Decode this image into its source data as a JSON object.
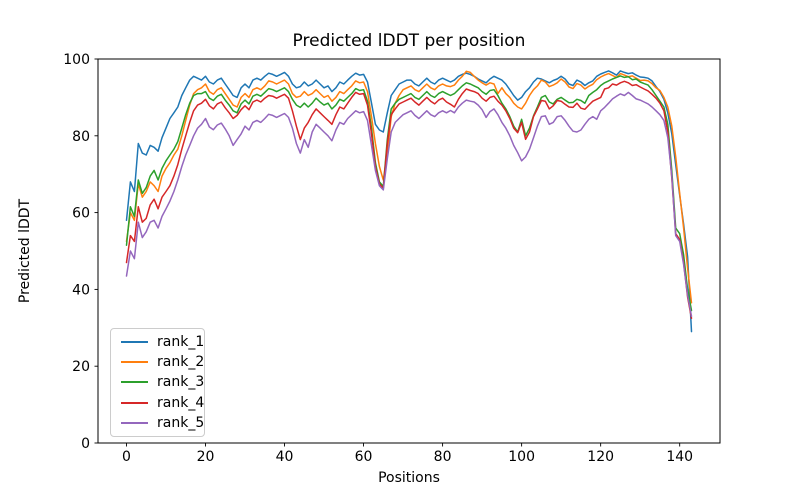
{
  "chart_data": {
    "type": "line",
    "title": "Predicted lDDT per position",
    "xlabel": "Positions",
    "ylabel": "Predicted lDDT",
    "xlim": [
      -7.2,
      150.2
    ],
    "ylim": [
      0,
      100
    ],
    "x_ticks": [
      0,
      20,
      40,
      60,
      80,
      100,
      120,
      140
    ],
    "y_ticks": [
      0,
      20,
      40,
      60,
      80,
      100
    ],
    "grid": false,
    "legend_position": "lower left",
    "x_start": 0,
    "x_step": 1,
    "series": [
      {
        "name": "rank_1",
        "color": "#1f77b4",
        "values": [
          58,
          68,
          65.5,
          78,
          75.5,
          75,
          77.5,
          77,
          76,
          79.5,
          82,
          84.5,
          86,
          87.5,
          90.5,
          92.5,
          94.5,
          95.5,
          95,
          94.5,
          95.5,
          94,
          93.5,
          94.5,
          95,
          93.5,
          92,
          90.5,
          90,
          92.5,
          93.5,
          92.5,
          94.5,
          95,
          94.5,
          95.5,
          96.3,
          96,
          95.5,
          96,
          96.5,
          95.5,
          93.5,
          92.5,
          92.8,
          94,
          93,
          93.5,
          94.5,
          93.5,
          92.5,
          93,
          91.5,
          92.5,
          94,
          93.5,
          94.5,
          95.5,
          96.3,
          95.8,
          96,
          94,
          88.5,
          83,
          81.5,
          81,
          86,
          90.5,
          92,
          93.5,
          94,
          94.5,
          94.5,
          93.5,
          93,
          94,
          95,
          94,
          93.5,
          94.5,
          95,
          94.5,
          94,
          94.5,
          95.5,
          96,
          96.3,
          96,
          95.5,
          94.8,
          94.3,
          93.8,
          94.8,
          95.5,
          95,
          94.5,
          93.5,
          92,
          90.5,
          89.3,
          90,
          91.5,
          92.5,
          94,
          95,
          94.8,
          94.3,
          93.8,
          94.4,
          94.8,
          95.5,
          94.8,
          93.5,
          93.1,
          94.5,
          94,
          93.1,
          93.8,
          94.3,
          95.5,
          96.1,
          96.5,
          96.9,
          96.4,
          95.8,
          96.9,
          96.5,
          96.2,
          96.4,
          95.8,
          95.3,
          95.2,
          95,
          94.3,
          92.8,
          91.5,
          89.5,
          86,
          80.5,
          72.5,
          64.5,
          57,
          48.5,
          29
        ]
      },
      {
        "name": "rank_2",
        "color": "#ff7f0e",
        "values": [
          52.5,
          60,
          58,
          67.5,
          64,
          65.5,
          68,
          67,
          65.5,
          69.5,
          71.5,
          73,
          75,
          76.5,
          80,
          84,
          88,
          91,
          92,
          92.5,
          93.5,
          91.5,
          90.8,
          92,
          92.5,
          91,
          89.5,
          88,
          87.5,
          90,
          91,
          90,
          92,
          92.5,
          92,
          93,
          94.3,
          94,
          93.5,
          94,
          94.5,
          93.5,
          91,
          90,
          90.3,
          91.5,
          90.5,
          91,
          92,
          91,
          90,
          90.5,
          89,
          90,
          91.5,
          91,
          92,
          93,
          94.3,
          93.8,
          94,
          91.5,
          85,
          78,
          72,
          68.5,
          75,
          85,
          88.5,
          90.5,
          92,
          92.5,
          93,
          92,
          91.5,
          92.5,
          93.5,
          92.5,
          92,
          93,
          93.5,
          93,
          92.8,
          93.2,
          94.5,
          95.5,
          96.8,
          96.5,
          95.5,
          94.5,
          93.8,
          93.2,
          93.8,
          93.5,
          91,
          92.5,
          91,
          90,
          88.5,
          87.5,
          87,
          88.5,
          90.5,
          92,
          93,
          94.5,
          94,
          92.8,
          93.2,
          93.8,
          94.8,
          94,
          92.7,
          92.3,
          93.6,
          93.2,
          92.2,
          92.9,
          93.4,
          94.6,
          95.3,
          95.8,
          96.2,
          95.7,
          95.2,
          96.2,
          95.8,
          95.4,
          95.6,
          95,
          94.4,
          94.5,
          94.3,
          93.6,
          92.5,
          91.8,
          90,
          87.5,
          82.5,
          74.5,
          65,
          56,
          45.5,
          36.5
        ]
      },
      {
        "name": "rank_3",
        "color": "#2ca02c",
        "values": [
          51.5,
          61.5,
          59,
          68.5,
          65,
          66.5,
          69.5,
          71,
          68.5,
          71.5,
          73.5,
          75,
          76.5,
          78.5,
          82,
          85.5,
          88.5,
          90.5,
          91,
          91,
          91.5,
          89.8,
          89.2,
          90.3,
          90.8,
          89.3,
          88,
          86.5,
          86,
          88.3,
          89.3,
          88.3,
          90.3,
          90.8,
          90.3,
          91.3,
          92.3,
          92,
          91.5,
          92,
          92.5,
          91.5,
          89.5,
          88,
          87.4,
          88.5,
          87.5,
          88.5,
          89.8,
          88.8,
          88,
          88.5,
          87,
          88,
          89.5,
          89,
          90,
          91,
          92.3,
          91.8,
          92,
          89,
          82,
          73,
          68,
          66.8,
          79,
          87,
          88.5,
          89.5,
          90,
          90.5,
          91,
          90,
          89.5,
          90.5,
          91.5,
          90.5,
          90,
          91,
          91.5,
          91,
          90.5,
          91,
          92,
          93,
          93.8,
          93.5,
          93,
          92.5,
          91.5,
          90.8,
          91.8,
          92,
          90.5,
          88.5,
          87,
          85,
          82.5,
          81,
          84.3,
          80,
          82,
          85.2,
          87.5,
          90,
          90.5,
          88.8,
          88.3,
          89.5,
          90,
          89.3,
          88.6,
          88.7,
          89.5,
          89.2,
          88.5,
          90.5,
          91.3,
          92,
          93.1,
          93.8,
          94.3,
          94.8,
          95.2,
          95.6,
          95.2,
          95.4,
          94.6,
          94.8,
          94,
          93.6,
          93.2,
          92,
          90.5,
          89,
          87.5,
          83,
          71,
          56,
          54.5,
          49,
          40,
          34.5
        ]
      },
      {
        "name": "rank_4",
        "color": "#d62728",
        "values": [
          47,
          54,
          52.5,
          61.5,
          57.5,
          58.5,
          62,
          63.5,
          61,
          64,
          65.5,
          67,
          69.5,
          72.5,
          76.5,
          80,
          83.5,
          86.5,
          88,
          88.5,
          89.5,
          87.8,
          87,
          88.3,
          88.8,
          87.3,
          86,
          84.5,
          85.3,
          86.8,
          87.8,
          86.8,
          88.8,
          89.3,
          88.8,
          89.8,
          90.5,
          90.3,
          89.8,
          90.3,
          90.8,
          89.8,
          86.5,
          82.5,
          79,
          82,
          83.5,
          85.5,
          87,
          86,
          85,
          84,
          83,
          85.5,
          87.5,
          87,
          88.5,
          90,
          91.3,
          90.8,
          91,
          88,
          80.5,
          72,
          67.5,
          66.3,
          78,
          85.5,
          87,
          88.3,
          88.8,
          89.3,
          89.8,
          88.8,
          88,
          89,
          90,
          89,
          88.3,
          89.3,
          89.8,
          88.8,
          88.2,
          87.5,
          89.5,
          91,
          92.2,
          91.8,
          91.5,
          91,
          89.8,
          89,
          90,
          90.3,
          89,
          88,
          86.5,
          84.5,
          82,
          80.8,
          83.5,
          79.1,
          81,
          85,
          87,
          89.2,
          89,
          87,
          87.8,
          89.2,
          89,
          88.2,
          87.5,
          87.4,
          88.5,
          87.2,
          86.9,
          88,
          89,
          89.5,
          90,
          92.2,
          92.5,
          93.5,
          93.2,
          93.8,
          94.2,
          93.8,
          93.1,
          93.3,
          92.7,
          92.2,
          91.7,
          90.8,
          89.8,
          88.5,
          86.5,
          81,
          69,
          54.5,
          53,
          47,
          38,
          32.5
        ]
      },
      {
        "name": "rank_5",
        "color": "#9467bd",
        "values": [
          43.5,
          50,
          48,
          57.5,
          53.5,
          55,
          57.5,
          58,
          56,
          59,
          61,
          63,
          65.5,
          68.5,
          72,
          75,
          77.5,
          80,
          82,
          83,
          84.5,
          82.3,
          81.6,
          82.8,
          83.3,
          81.8,
          80,
          77.5,
          79,
          80.5,
          82.5,
          81.5,
          83.5,
          84,
          83.5,
          84.5,
          85.6,
          85.3,
          84.8,
          85.3,
          85.8,
          84.8,
          82,
          78,
          75.5,
          79,
          77,
          81,
          83,
          82,
          81,
          80,
          78.7,
          81.5,
          83.5,
          83,
          84.5,
          85.5,
          86.5,
          86,
          86.3,
          84,
          77.5,
          71,
          67,
          65.9,
          74,
          81,
          83.5,
          84.5,
          85.5,
          86,
          86.5,
          85.3,
          84.5,
          85.5,
          86.5,
          85.5,
          85,
          86,
          86.5,
          86,
          86.6,
          86,
          87.5,
          88.5,
          89.3,
          89,
          88.8,
          88,
          86.8,
          84.8,
          86.3,
          87,
          85.5,
          83.5,
          82,
          80,
          77.5,
          75.6,
          73.5,
          74.5,
          76.5,
          79.5,
          82.5,
          85,
          85.2,
          83,
          83.5,
          85,
          85.2,
          84,
          82.5,
          81.2,
          81,
          81.5,
          83,
          84.3,
          85,
          84.3,
          86.5,
          87.4,
          88.5,
          89.6,
          90.3,
          90.9,
          90.5,
          91.3,
          90.5,
          89.6,
          89.3,
          88.8,
          88.3,
          87.5,
          86.5,
          85.5,
          84,
          79.5,
          69.5,
          54,
          52.5,
          46.5,
          38.5,
          33
        ]
      }
    ]
  }
}
